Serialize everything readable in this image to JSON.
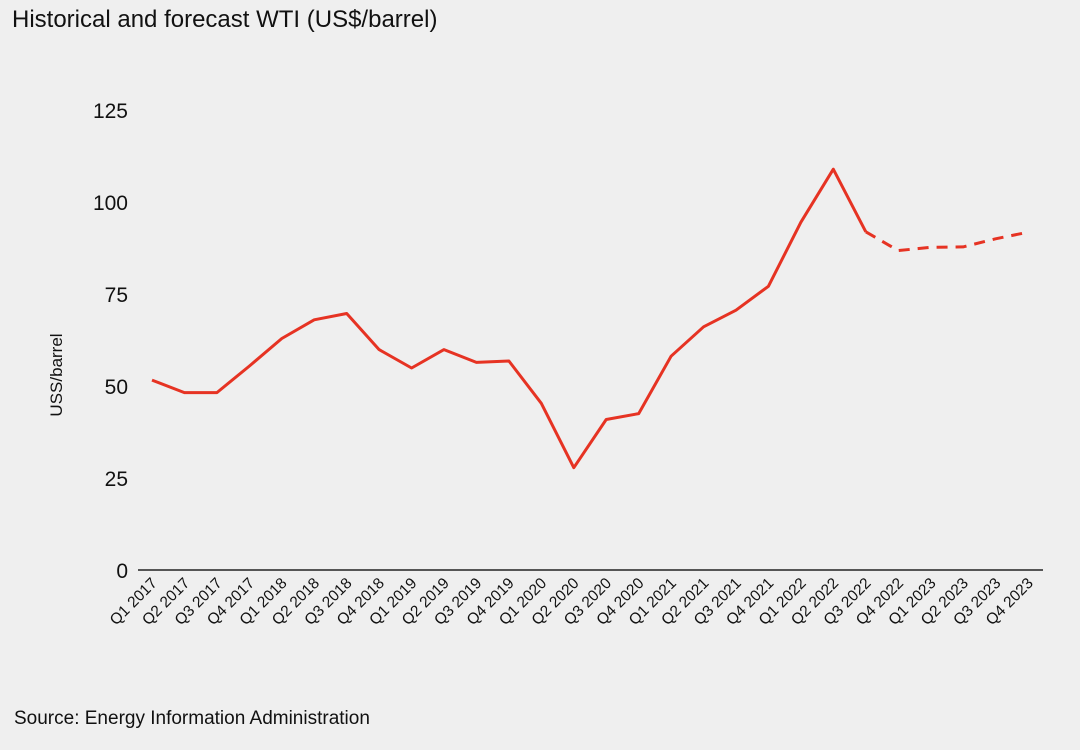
{
  "page": {
    "title": "Historical and forecast WTI (US$/barrel)",
    "source": "Source: Energy Information Administration"
  },
  "chart_data": {
    "type": "line",
    "title": "Historical and forecast WTI (US$/barrel)",
    "ylabel": "USS/barrel",
    "xlabel": "",
    "ylim": [
      0,
      125
    ],
    "yticks": [
      0,
      25,
      50,
      75,
      100,
      125
    ],
    "grid": false,
    "legend": "none",
    "line_color": "#e63323",
    "categories": [
      "Q1 2017",
      "Q2 2017",
      "Q3 2017",
      "Q4 2017",
      "Q1 2018",
      "Q2 2018",
      "Q3 2018",
      "Q4 2018",
      "Q1 2019",
      "Q2 2019",
      "Q3 2019",
      "Q4 2019",
      "Q1 2020",
      "Q2 2020",
      "Q3 2020",
      "Q4 2020",
      "Q1 2021",
      "Q2 2021",
      "Q3 2021",
      "Q4 2021",
      "Q1 2022",
      "Q2 2022",
      "Q3 2022",
      "Q4 2022",
      "Q1 2023",
      "Q2 2023",
      "Q3 2023",
      "Q4 2023"
    ],
    "series": [
      {
        "style": "solid",
        "values": [
          51.6,
          48.2,
          48.2,
          55.4,
          62.9,
          68.0,
          69.7,
          59.9,
          54.9,
          59.9,
          56.4,
          56.8,
          45.3,
          27.8,
          40.9,
          42.5,
          58.1,
          66.1,
          70.6,
          77.1,
          94.5,
          108.9,
          91.9,
          null,
          null,
          null,
          null,
          null
        ]
      },
      {
        "style": "dashed",
        "values": [
          null,
          null,
          null,
          null,
          null,
          null,
          null,
          null,
          null,
          null,
          null,
          null,
          null,
          null,
          null,
          null,
          null,
          null,
          null,
          null,
          null,
          null,
          91.9,
          86.8,
          87.7,
          87.8,
          90.0,
          91.8
        ]
      }
    ]
  }
}
